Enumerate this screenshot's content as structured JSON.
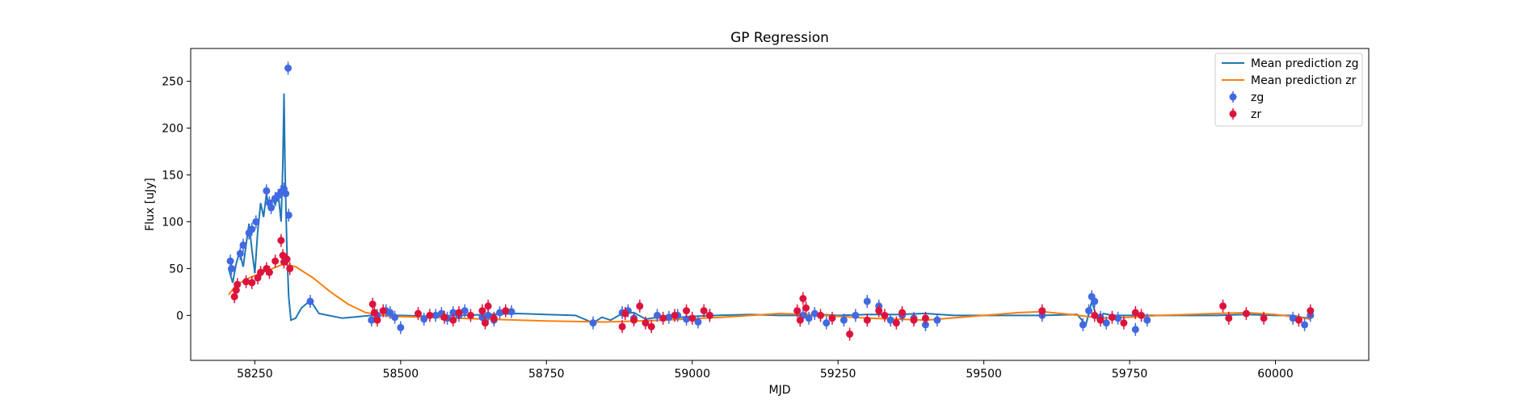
{
  "chart_data": {
    "type": "scatter",
    "title": "GP Regression",
    "xlabel": "MJD",
    "ylabel": "Flux [uJy]",
    "xlim": [
      58140,
      60160
    ],
    "ylim": [
      -48,
      285
    ],
    "xticks": [
      58250,
      58500,
      58750,
      59000,
      59250,
      59500,
      59750,
      60000
    ],
    "yticks": [
      0,
      50,
      100,
      150,
      200,
      250
    ],
    "grid": false,
    "legend_position": "top-right",
    "legend": [
      "Mean prediction zg",
      "Mean prediction zr",
      "zg",
      "zr"
    ],
    "colors": {
      "zg_line": "#1f77b4",
      "zr_line": "#ff7f0e",
      "zg_points": "#4169e1",
      "zr_points": "#dc143c"
    },
    "series": [
      {
        "name": "Mean prediction zg",
        "kind": "line",
        "x": [
          58205,
          58212,
          58218,
          58224,
          58230,
          58236,
          58240,
          58245,
          58250,
          58255,
          58260,
          58265,
          58270,
          58275,
          58280,
          58285,
          58290,
          58295,
          58298,
          58300,
          58302,
          58305,
          58308,
          58312,
          58320,
          58330,
          58345,
          58360,
          58400,
          58450,
          58500,
          58550,
          58600,
          58650,
          58700,
          58750,
          58800,
          58815,
          58830,
          58845,
          58860,
          58880,
          58900,
          58920,
          58940,
          58960,
          58980,
          59000,
          59040,
          59100,
          59150,
          59190,
          59220,
          59250,
          59300,
          59350,
          59400,
          59450,
          59500,
          59600,
          59660,
          59675,
          59685,
          59695,
          59705,
          59720,
          59760,
          59800,
          59900,
          59950,
          60000,
          60030,
          60045,
          60060
        ],
        "y": [
          50,
          35,
          55,
          68,
          52,
          80,
          98,
          70,
          45,
          90,
          120,
          105,
          130,
          112,
          125,
          118,
          130,
          100,
          160,
          237,
          150,
          70,
          20,
          -5,
          -3,
          8,
          16,
          2,
          -3,
          0,
          0,
          -1,
          0,
          1,
          2,
          1,
          0,
          -4,
          -8,
          -2,
          -5,
          2,
          3,
          -4,
          -2,
          0,
          -2,
          -1,
          0,
          1,
          0,
          0,
          1,
          0,
          1,
          1,
          2,
          0,
          0,
          0,
          1,
          -10,
          15,
          -5,
          2,
          0,
          0,
          0,
          0,
          1,
          0,
          0,
          -2,
          -3
        ]
      },
      {
        "name": "Mean prediction zr",
        "kind": "line",
        "x": [
          58205,
          58215,
          58225,
          58240,
          58260,
          58280,
          58300,
          58320,
          58350,
          58380,
          58410,
          58440,
          58480,
          58550,
          58650,
          58750,
          58850,
          58950,
          59050,
          59150,
          59200,
          59250,
          59300,
          59400,
          59500,
          59560,
          59600,
          59650,
          59700,
          59750,
          59800,
          59900,
          59950,
          60000,
          60050,
          60060
        ],
        "y": [
          22,
          30,
          35,
          40,
          45,
          50,
          55,
          52,
          40,
          25,
          12,
          3,
          -1,
          -2,
          -4,
          -6,
          -7,
          -5,
          -2,
          2,
          1,
          -1,
          -3,
          -5,
          0,
          3,
          4,
          1,
          -3,
          -2,
          0,
          2,
          3,
          1,
          -3,
          -4
        ]
      },
      {
        "name": "zg",
        "kind": "points",
        "x": [
          58208,
          58210,
          58225,
          58230,
          58240,
          58245,
          58252,
          58270,
          58275,
          58278,
          58285,
          58290,
          58295,
          58300,
          58303,
          58307,
          58308,
          58345,
          58450,
          58460,
          58475,
          58482,
          58490,
          58500,
          58540,
          58560,
          58570,
          58580,
          58590,
          58600,
          58610,
          58640,
          58650,
          58660,
          58670,
          58690,
          58830,
          58880,
          58890,
          58900,
          58940,
          58960,
          58975,
          58990,
          59010,
          59030,
          59190,
          59200,
          59210,
          59230,
          59260,
          59280,
          59300,
          59320,
          59340,
          59360,
          59380,
          59400,
          59420,
          59600,
          59670,
          59680,
          59685,
          59690,
          59700,
          59710,
          59730,
          59760,
          59780,
          60030,
          60050,
          60060
        ],
        "y": [
          58,
          50,
          66,
          75,
          88,
          92,
          100,
          133,
          120,
          115,
          125,
          128,
          132,
          135,
          130,
          264,
          107,
          15,
          -5,
          0,
          5,
          3,
          -2,
          -13,
          -4,
          0,
          2,
          -3,
          3,
          0,
          5,
          -2,
          0,
          -5,
          3,
          4,
          -8,
          3,
          5,
          -3,
          0,
          -2,
          0,
          -4,
          -7,
          0,
          0,
          -3,
          2,
          -8,
          -5,
          0,
          15,
          10,
          -5,
          0,
          -3,
          -10,
          -5,
          0,
          -10,
          5,
          20,
          15,
          -2,
          -8,
          -3,
          -15,
          -5,
          -3,
          -10,
          0
        ]
      },
      {
        "name": "zr",
        "kind": "points",
        "x": [
          58215,
          58218,
          58220,
          58235,
          58245,
          58255,
          58260,
          58270,
          58275,
          58285,
          58295,
          58298,
          58300,
          58305,
          58310,
          58452,
          58455,
          58460,
          58470,
          58530,
          58550,
          58575,
          58590,
          58600,
          58620,
          58640,
          58645,
          58650,
          58660,
          58680,
          58880,
          58885,
          58900,
          58910,
          58920,
          58930,
          58950,
          58970,
          58990,
          59000,
          59020,
          59030,
          59180,
          59185,
          59190,
          59195,
          59220,
          59240,
          59270,
          59300,
          59320,
          59330,
          59350,
          59360,
          59380,
          59400,
          59600,
          59690,
          59700,
          59720,
          59740,
          59760,
          59770,
          59910,
          59920,
          59950,
          59980,
          60040,
          60060
        ],
        "y": [
          20,
          27,
          33,
          36,
          35,
          40,
          46,
          50,
          46,
          58,
          80,
          64,
          57,
          60,
          50,
          12,
          3,
          -5,
          5,
          2,
          0,
          -2,
          -5,
          3,
          0,
          5,
          -8,
          10,
          -3,
          5,
          -12,
          2,
          -5,
          10,
          -8,
          -12,
          -3,
          0,
          5,
          -3,
          5,
          0,
          5,
          -5,
          18,
          8,
          0,
          -3,
          -20,
          -5,
          5,
          0,
          -8,
          3,
          -5,
          -3,
          5,
          0,
          -5,
          -2,
          -8,
          3,
          0,
          10,
          -3,
          2,
          -3,
          -5,
          5
        ]
      }
    ]
  }
}
